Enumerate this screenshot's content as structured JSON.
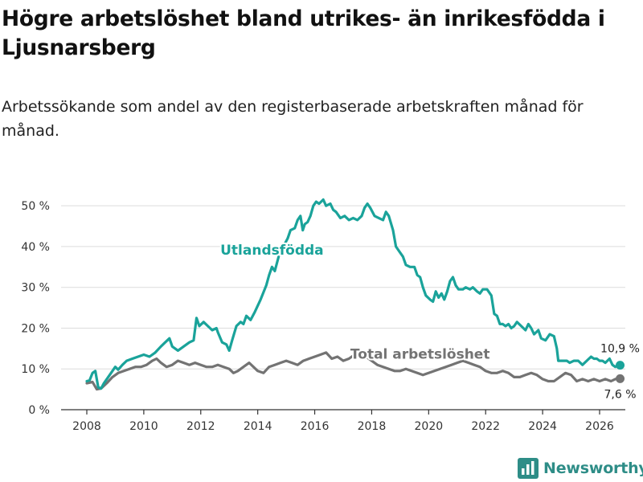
{
  "title": "Högre arbetslöshet bland utrikes- än inrikesfödda i Ljusnarsberg",
  "subtitle": "Arbetssökande som andel av den registerbaserade arbetskraften månad för månad.",
  "brand": {
    "name": "Newsworthy"
  },
  "colors": {
    "foreign": "#1aa39a",
    "total": "#737373",
    "grid": "#dcdcdc",
    "axis": "#333333",
    "text": "#333333",
    "brand": "#2e8d87"
  },
  "chart_data": {
    "type": "line",
    "title": "Högre arbetslöshet bland utrikes- än inrikesfödda i Ljusnarsberg",
    "subtitle": "Arbetssökande som andel av den registerbaserade arbetskraften månad för månad.",
    "xlabel": "",
    "ylabel": "",
    "xlim": [
      2007.5,
      2026.8
    ],
    "ylim": [
      0,
      52
    ],
    "x_ticks": [
      2008,
      2010,
      2012,
      2014,
      2016,
      2018,
      2020,
      2022,
      2024,
      2026
    ],
    "x_tick_labels": [
      "2008",
      "2010",
      "2012",
      "2014",
      "2016",
      "2018",
      "2020",
      "2022",
      "2024",
      "2026"
    ],
    "y_ticks": [
      0,
      10,
      20,
      30,
      40,
      50
    ],
    "y_tick_labels": [
      "0 %",
      "10 %",
      "20 %",
      "30 %",
      "40 %",
      "50 %"
    ],
    "grid": true,
    "series": [
      {
        "name": "Utlandsfödda",
        "key": "foreign",
        "end_label": "10,9 %",
        "points": [
          [
            2008.0,
            7.0
          ],
          [
            2008.1,
            7.2
          ],
          [
            2008.2,
            9.0
          ],
          [
            2008.3,
            9.5
          ],
          [
            2008.4,
            5.5
          ],
          [
            2008.5,
            5.2
          ],
          [
            2008.6,
            6.5
          ],
          [
            2008.75,
            8.0
          ],
          [
            2008.9,
            9.5
          ],
          [
            2009.0,
            10.5
          ],
          [
            2009.1,
            9.8
          ],
          [
            2009.25,
            11.0
          ],
          [
            2009.4,
            12.0
          ],
          [
            2009.6,
            12.5
          ],
          [
            2009.8,
            13.0
          ],
          [
            2010.0,
            13.5
          ],
          [
            2010.2,
            13.0
          ],
          [
            2010.4,
            14.0
          ],
          [
            2010.6,
            15.5
          ],
          [
            2010.75,
            16.5
          ],
          [
            2010.9,
            17.5
          ],
          [
            2011.0,
            15.5
          ],
          [
            2011.2,
            14.5
          ],
          [
            2011.4,
            15.5
          ],
          [
            2011.6,
            16.5
          ],
          [
            2011.75,
            17.0
          ],
          [
            2011.85,
            22.5
          ],
          [
            2011.95,
            20.5
          ],
          [
            2012.1,
            21.5
          ],
          [
            2012.25,
            20.5
          ],
          [
            2012.4,
            19.5
          ],
          [
            2012.55,
            20.0
          ],
          [
            2012.6,
            19.0
          ],
          [
            2012.75,
            16.5
          ],
          [
            2012.9,
            16.0
          ],
          [
            2013.0,
            14.5
          ],
          [
            2013.1,
            17.0
          ],
          [
            2013.25,
            20.5
          ],
          [
            2013.4,
            21.5
          ],
          [
            2013.5,
            21.0
          ],
          [
            2013.6,
            23.0
          ],
          [
            2013.75,
            22.0
          ],
          [
            2013.9,
            24.0
          ],
          [
            2014.1,
            27.0
          ],
          [
            2014.3,
            30.5
          ],
          [
            2014.4,
            33.0
          ],
          [
            2014.5,
            35.0
          ],
          [
            2014.6,
            34.0
          ],
          [
            2014.75,
            38.0
          ],
          [
            2014.9,
            40.0
          ],
          [
            2015.05,
            42.0
          ],
          [
            2015.15,
            44.0
          ],
          [
            2015.3,
            44.5
          ],
          [
            2015.4,
            46.5
          ],
          [
            2015.5,
            47.5
          ],
          [
            2015.58,
            44.0
          ],
          [
            2015.65,
            45.5
          ],
          [
            2015.75,
            46.0
          ],
          [
            2015.85,
            47.5
          ],
          [
            2015.95,
            50.0
          ],
          [
            2016.05,
            51.0
          ],
          [
            2016.15,
            50.5
          ],
          [
            2016.3,
            51.5
          ],
          [
            2016.4,
            50.0
          ],
          [
            2016.55,
            50.5
          ],
          [
            2016.65,
            49.0
          ],
          [
            2016.75,
            48.5
          ],
          [
            2016.9,
            47.0
          ],
          [
            2017.05,
            47.5
          ],
          [
            2017.2,
            46.5
          ],
          [
            2017.35,
            47.0
          ],
          [
            2017.5,
            46.5
          ],
          [
            2017.65,
            47.5
          ],
          [
            2017.75,
            49.5
          ],
          [
            2017.85,
            50.5
          ],
          [
            2017.95,
            49.5
          ],
          [
            2018.1,
            47.5
          ],
          [
            2018.25,
            47.0
          ],
          [
            2018.4,
            46.5
          ],
          [
            2018.5,
            48.5
          ],
          [
            2018.6,
            47.5
          ],
          [
            2018.75,
            44.0
          ],
          [
            2018.85,
            40.0
          ],
          [
            2018.95,
            39.0
          ],
          [
            2019.1,
            37.5
          ],
          [
            2019.2,
            35.5
          ],
          [
            2019.35,
            35.0
          ],
          [
            2019.5,
            35.0
          ],
          [
            2019.6,
            33.0
          ],
          [
            2019.7,
            32.5
          ],
          [
            2019.8,
            30.0
          ],
          [
            2019.9,
            28.0
          ],
          [
            2020.05,
            27.0
          ],
          [
            2020.15,
            26.5
          ],
          [
            2020.25,
            29.0
          ],
          [
            2020.35,
            27.5
          ],
          [
            2020.45,
            28.5
          ],
          [
            2020.55,
            27.0
          ],
          [
            2020.65,
            29.0
          ],
          [
            2020.75,
            31.5
          ],
          [
            2020.85,
            32.5
          ],
          [
            2020.95,
            30.5
          ],
          [
            2021.05,
            29.5
          ],
          [
            2021.2,
            29.5
          ],
          [
            2021.3,
            30.0
          ],
          [
            2021.45,
            29.5
          ],
          [
            2021.55,
            30.0
          ],
          [
            2021.7,
            29.0
          ],
          [
            2021.8,
            28.5
          ],
          [
            2021.9,
            29.5
          ],
          [
            2022.05,
            29.5
          ],
          [
            2022.2,
            28.0
          ],
          [
            2022.3,
            23.5
          ],
          [
            2022.4,
            23.0
          ],
          [
            2022.5,
            21.0
          ],
          [
            2022.6,
            21.0
          ],
          [
            2022.7,
            20.5
          ],
          [
            2022.8,
            21.0
          ],
          [
            2022.9,
            20.0
          ],
          [
            2023.0,
            20.5
          ],
          [
            2023.1,
            21.5
          ],
          [
            2023.25,
            20.5
          ],
          [
            2023.4,
            19.5
          ],
          [
            2023.5,
            21.0
          ],
          [
            2023.6,
            20.0
          ],
          [
            2023.7,
            18.5
          ],
          [
            2023.85,
            19.5
          ],
          [
            2023.95,
            17.5
          ],
          [
            2024.1,
            17.0
          ],
          [
            2024.25,
            18.5
          ],
          [
            2024.4,
            18.0
          ],
          [
            2024.5,
            15.0
          ],
          [
            2024.55,
            12.0
          ],
          [
            2024.7,
            12.0
          ],
          [
            2024.85,
            12.0
          ],
          [
            2024.95,
            11.5
          ],
          [
            2025.1,
            12.0
          ],
          [
            2025.25,
            12.0
          ],
          [
            2025.4,
            11.0
          ],
          [
            2025.55,
            12.0
          ],
          [
            2025.7,
            13.0
          ],
          [
            2025.8,
            12.5
          ],
          [
            2025.9,
            12.5
          ],
          [
            2026.0,
            12.0
          ],
          [
            2026.1,
            12.0
          ],
          [
            2026.2,
            11.5
          ],
          [
            2026.35,
            12.5
          ],
          [
            2026.45,
            11.0
          ],
          [
            2026.55,
            10.5
          ],
          [
            2026.65,
            11.0
          ],
          [
            2026.72,
            10.9
          ]
        ]
      },
      {
        "name": "Total arbetslöshet",
        "key": "total",
        "end_label": "7,6 %",
        "points": [
          [
            2008.0,
            6.5
          ],
          [
            2008.2,
            6.8
          ],
          [
            2008.35,
            5.0
          ],
          [
            2008.5,
            5.2
          ],
          [
            2008.7,
            6.5
          ],
          [
            2008.9,
            8.0
          ],
          [
            2009.1,
            9.0
          ],
          [
            2009.3,
            9.5
          ],
          [
            2009.5,
            10.0
          ],
          [
            2009.7,
            10.5
          ],
          [
            2009.9,
            10.5
          ],
          [
            2010.1,
            11.0
          ],
          [
            2010.3,
            12.0
          ],
          [
            2010.45,
            12.5
          ],
          [
            2010.6,
            11.5
          ],
          [
            2010.8,
            10.5
          ],
          [
            2011.0,
            11.0
          ],
          [
            2011.2,
            12.0
          ],
          [
            2011.4,
            11.5
          ],
          [
            2011.6,
            11.0
          ],
          [
            2011.8,
            11.5
          ],
          [
            2012.0,
            11.0
          ],
          [
            2012.2,
            10.5
          ],
          [
            2012.4,
            10.5
          ],
          [
            2012.6,
            11.0
          ],
          [
            2012.8,
            10.5
          ],
          [
            2013.0,
            10.0
          ],
          [
            2013.15,
            9.0
          ],
          [
            2013.3,
            9.5
          ],
          [
            2013.5,
            10.5
          ],
          [
            2013.7,
            11.5
          ],
          [
            2013.85,
            10.5
          ],
          [
            2014.0,
            9.5
          ],
          [
            2014.2,
            9.0
          ],
          [
            2014.4,
            10.5
          ],
          [
            2014.6,
            11.0
          ],
          [
            2014.8,
            11.5
          ],
          [
            2015.0,
            12.0
          ],
          [
            2015.2,
            11.5
          ],
          [
            2015.4,
            11.0
          ],
          [
            2015.6,
            12.0
          ],
          [
            2015.8,
            12.5
          ],
          [
            2016.0,
            13.0
          ],
          [
            2016.2,
            13.5
          ],
          [
            2016.4,
            14.0
          ],
          [
            2016.6,
            12.5
          ],
          [
            2016.8,
            13.0
          ],
          [
            2017.0,
            12.0
          ],
          [
            2017.2,
            12.5
          ],
          [
            2017.4,
            13.5
          ],
          [
            2017.6,
            14.0
          ],
          [
            2017.8,
            13.0
          ],
          [
            2018.0,
            12.0
          ],
          [
            2018.2,
            11.0
          ],
          [
            2018.4,
            10.5
          ],
          [
            2018.6,
            10.0
          ],
          [
            2018.8,
            9.5
          ],
          [
            2019.0,
            9.5
          ],
          [
            2019.2,
            10.0
          ],
          [
            2019.4,
            9.5
          ],
          [
            2019.6,
            9.0
          ],
          [
            2019.8,
            8.5
          ],
          [
            2020.0,
            9.0
          ],
          [
            2020.2,
            9.5
          ],
          [
            2020.4,
            10.0
          ],
          [
            2020.6,
            10.5
          ],
          [
            2020.8,
            11.0
          ],
          [
            2021.0,
            11.5
          ],
          [
            2021.2,
            12.0
          ],
          [
            2021.4,
            11.5
          ],
          [
            2021.6,
            11.0
          ],
          [
            2021.8,
            10.5
          ],
          [
            2022.0,
            9.5
          ],
          [
            2022.2,
            9.0
          ],
          [
            2022.4,
            9.0
          ],
          [
            2022.6,
            9.5
          ],
          [
            2022.8,
            9.0
          ],
          [
            2023.0,
            8.0
          ],
          [
            2023.2,
            8.0
          ],
          [
            2023.4,
            8.5
          ],
          [
            2023.6,
            9.0
          ],
          [
            2023.8,
            8.5
          ],
          [
            2024.0,
            7.5
          ],
          [
            2024.2,
            7.0
          ],
          [
            2024.4,
            7.0
          ],
          [
            2024.6,
            8.0
          ],
          [
            2024.8,
            9.0
          ],
          [
            2025.0,
            8.5
          ],
          [
            2025.2,
            7.0
          ],
          [
            2025.4,
            7.5
          ],
          [
            2025.6,
            7.0
          ],
          [
            2025.8,
            7.5
          ],
          [
            2026.0,
            7.0
          ],
          [
            2026.2,
            7.5
          ],
          [
            2026.4,
            7.0
          ],
          [
            2026.55,
            7.5
          ],
          [
            2026.72,
            7.6
          ]
        ]
      }
    ],
    "annotations": [
      {
        "text": "Utlandsfödda",
        "series": "foreign",
        "x": 2014.5,
        "y": 38.0
      },
      {
        "text": "Total arbetslöshet",
        "series": "total",
        "x": 2019.7,
        "y": 12.5
      }
    ]
  }
}
